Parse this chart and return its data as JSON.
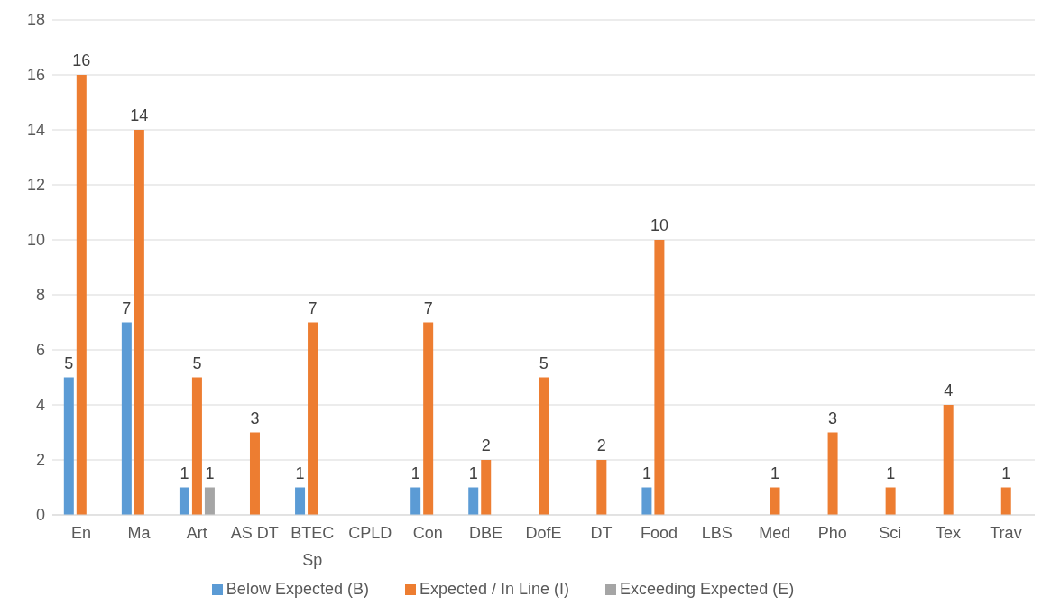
{
  "chart_data": {
    "type": "bar",
    "categories": [
      "En",
      "Ma",
      "Art",
      "AS DT",
      "BTEC Sp",
      "CPLD",
      "Con",
      "DBE",
      "DofE",
      "DT",
      "Food",
      "LBS",
      "Med",
      "Pho",
      "Sci",
      "Tex",
      "Trav"
    ],
    "series": [
      {
        "name": "Below Expected (B)",
        "color": "#5b9bd5",
        "values": [
          5,
          7,
          1,
          null,
          1,
          null,
          1,
          1,
          null,
          null,
          1,
          null,
          null,
          null,
          null,
          null,
          null
        ]
      },
      {
        "name": "Expected / In Line (I)",
        "color": "#ed7d31",
        "values": [
          16,
          14,
          5,
          3,
          7,
          null,
          7,
          2,
          5,
          2,
          10,
          null,
          1,
          3,
          1,
          4,
          1
        ]
      },
      {
        "name": "Exceeding Expected (E)",
        "color": "#a5a5a5",
        "values": [
          null,
          null,
          1,
          null,
          null,
          null,
          null,
          null,
          null,
          null,
          null,
          null,
          null,
          null,
          null,
          null,
          null
        ]
      }
    ],
    "ylim": [
      0,
      18
    ],
    "yticks": [
      0,
      2,
      4,
      6,
      8,
      10,
      12,
      14,
      16,
      18
    ],
    "grid": "y",
    "legend": "bottom",
    "data_labels": true
  }
}
